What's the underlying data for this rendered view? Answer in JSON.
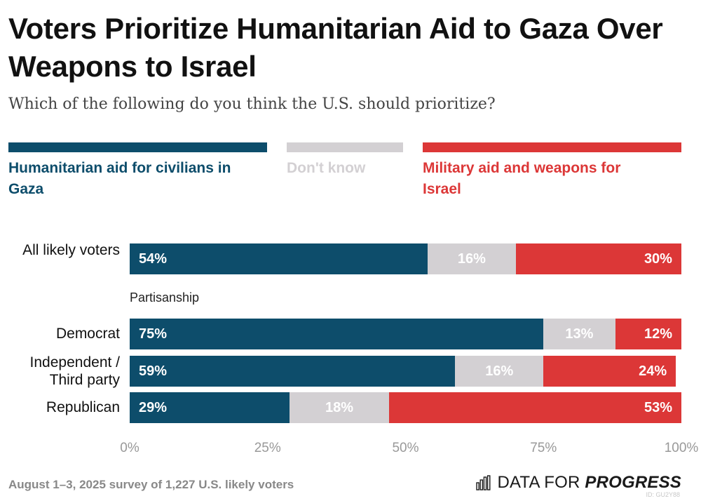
{
  "title": "Voters Prioritize Humanitarian Aid to Gaza Over Weapons to Israel",
  "subtitle": "Which of the following do you think the U.S. should prioritize?",
  "colors": {
    "humanitarian": "#0d4d6b",
    "dont_know": "#d3d0d3",
    "military": "#dc3737"
  },
  "legend": [
    {
      "key": "humanitarian",
      "label": "Humanitarian aid for civilians in Gaza"
    },
    {
      "key": "dont_know",
      "label": "Don't know"
    },
    {
      "key": "military",
      "label": "Military aid and weapons for Israel"
    }
  ],
  "group_label": "Partisanship",
  "chart_data": {
    "type": "bar",
    "orientation": "horizontal",
    "stacked": true,
    "title": "Voters Prioritize Humanitarian Aid to Gaza Over Weapons to Israel",
    "subtitle": "Which of the following do you think the U.S. should prioritize?",
    "categories": [
      "All likely voters",
      "Democrat",
      "Independent / Third party",
      "Republican"
    ],
    "series": [
      {
        "name": "Humanitarian aid for civilians in Gaza",
        "values": [
          54,
          75,
          59,
          29
        ]
      },
      {
        "name": "Don't know",
        "values": [
          16,
          13,
          16,
          18
        ]
      },
      {
        "name": "Military aid and weapons for Israel",
        "values": [
          30,
          12,
          24,
          53
        ]
      }
    ],
    "value_labels": [
      [
        "54%",
        "16%",
        "30%"
      ],
      [
        "75%",
        "13%",
        "12%"
      ],
      [
        "59%",
        "16%",
        "24%"
      ],
      [
        "29%",
        "18%",
        "53%"
      ]
    ],
    "xlim": [
      0,
      100
    ],
    "xticks": [
      "0%",
      "25%",
      "50%",
      "75%",
      "100%"
    ],
    "xtick_values": [
      0,
      25,
      50,
      75,
      100
    ],
    "legend_position": "top"
  },
  "footer": "August 1–3, 2025 survey of 1,227 U.S. likely voters",
  "brand": {
    "prefix": "DATA FOR ",
    "emphasis": "PROGRESS"
  },
  "id_mark": "ID: GU2Y88"
}
